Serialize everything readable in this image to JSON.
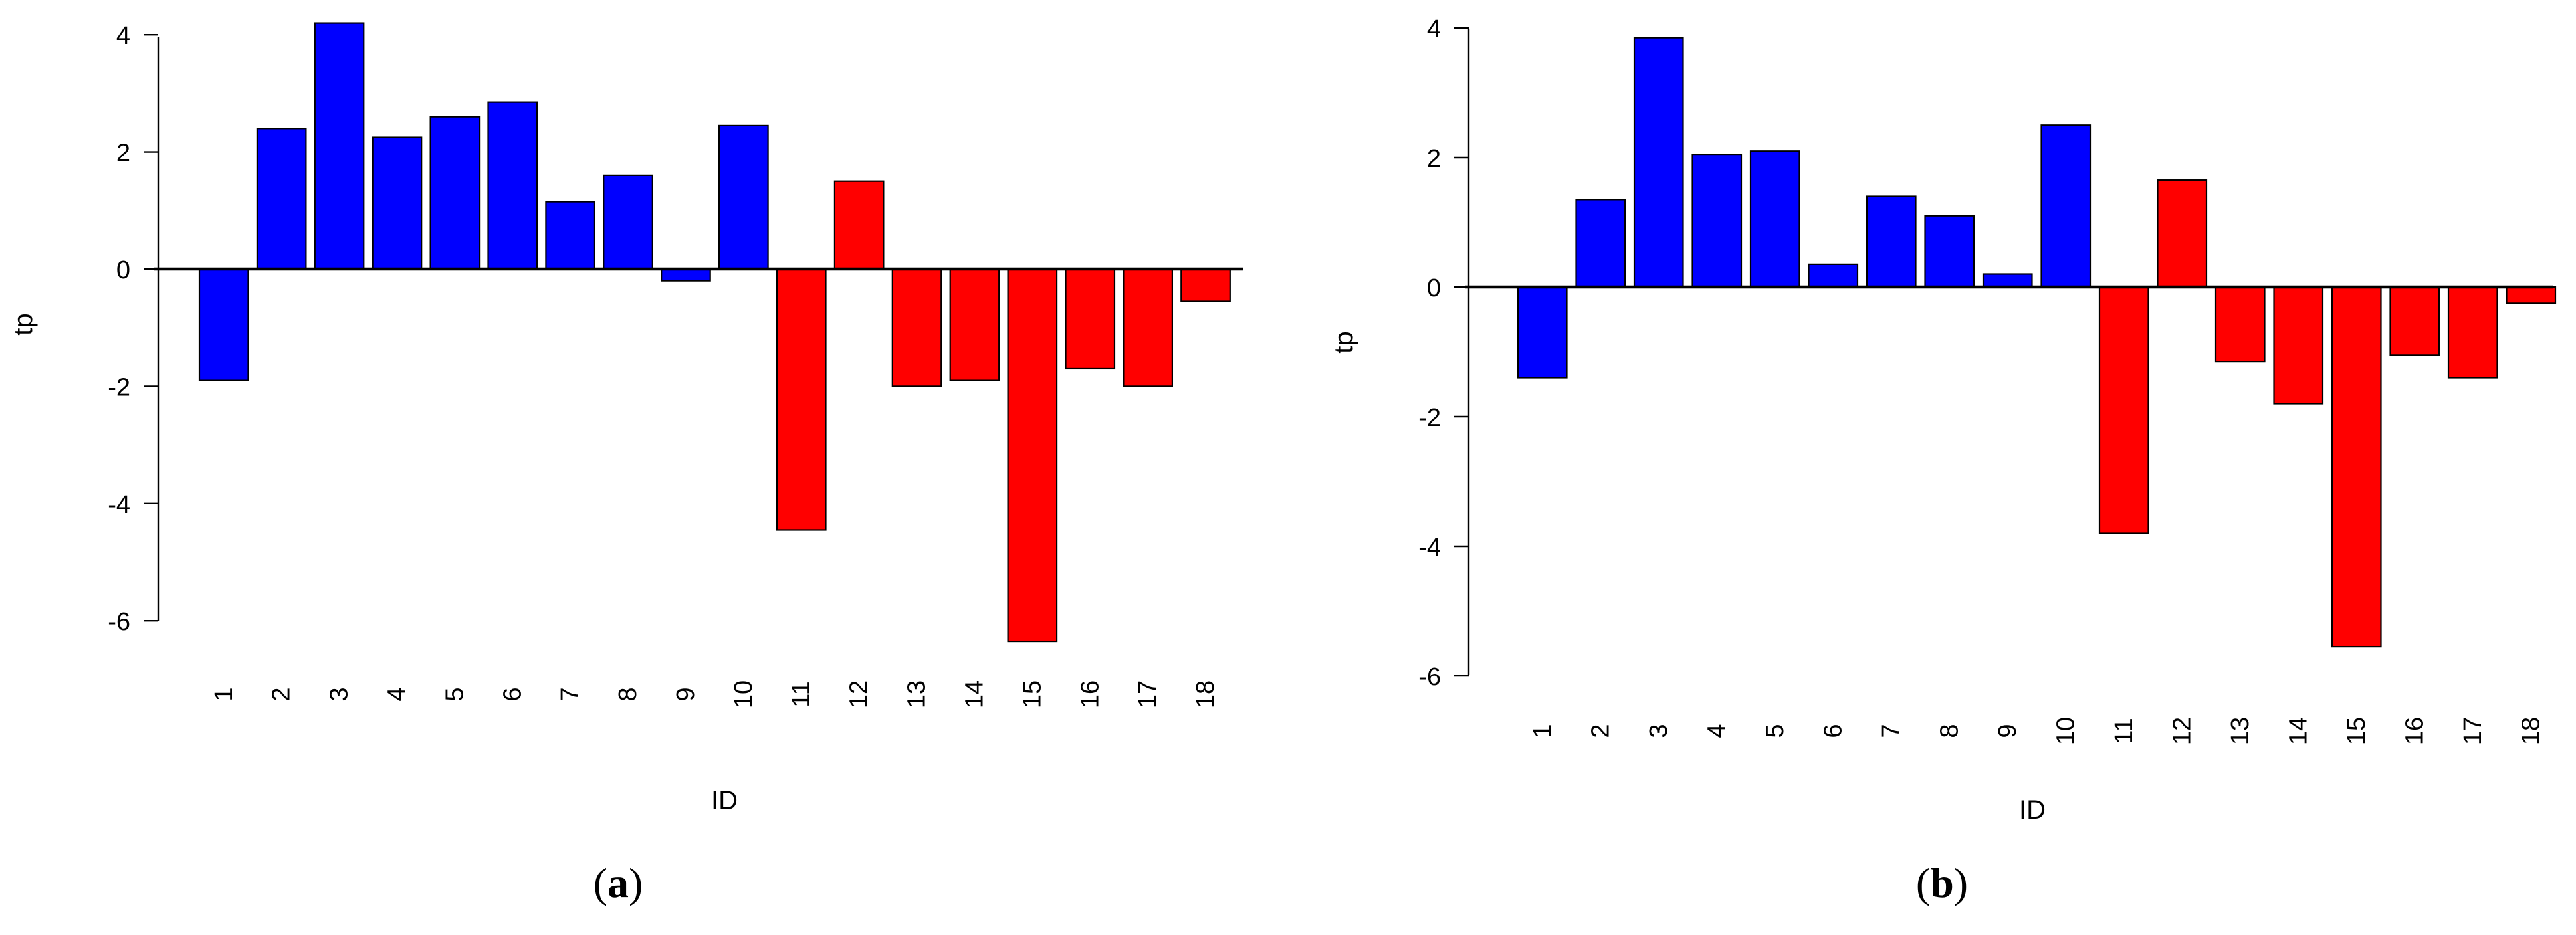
{
  "colors": {
    "positive": "#0000ff",
    "negative": "#ff0000",
    "stroke": "#000000"
  },
  "chart_data": [
    {
      "type": "bar",
      "caption": "a",
      "xlabel": "ID",
      "ylabel": "tp",
      "ylim": [
        -6.35,
        4.2
      ],
      "yticks": [
        4,
        2,
        0,
        -2,
        -4,
        -6
      ],
      "categories": [
        "1",
        "2",
        "3",
        "4",
        "5",
        "6",
        "7",
        "8",
        "9",
        "10",
        "11",
        "12",
        "13",
        "14",
        "15",
        "16",
        "17",
        "18"
      ],
      "values": [
        -1.9,
        2.4,
        4.2,
        2.25,
        2.6,
        2.85,
        1.15,
        1.6,
        -0.2,
        2.45,
        -4.45,
        1.5,
        -2.0,
        -1.9,
        -6.35,
        -1.7,
        -2.0,
        -0.55
      ],
      "bar_colors": [
        "blue",
        "blue",
        "blue",
        "blue",
        "blue",
        "blue",
        "blue",
        "blue",
        "blue",
        "blue",
        "red",
        "red",
        "red",
        "red",
        "red",
        "red",
        "red",
        "red"
      ],
      "grid": false,
      "legend": "none"
    },
    {
      "type": "bar",
      "caption": "b",
      "xlabel": "ID",
      "ylabel": "tp",
      "ylim": [
        -5.55,
        4.0
      ],
      "yticks": [
        4,
        2,
        0,
        -2,
        -4,
        -6
      ],
      "categories": [
        "1",
        "2",
        "3",
        "4",
        "5",
        "6",
        "7",
        "8",
        "9",
        "10",
        "11",
        "12",
        "13",
        "14",
        "15",
        "16",
        "17",
        "18"
      ],
      "values": [
        -1.4,
        1.35,
        3.85,
        2.05,
        2.1,
        0.35,
        1.4,
        1.1,
        0.2,
        2.5,
        -3.8,
        1.65,
        -1.15,
        -1.8,
        -5.55,
        -1.05,
        -1.4,
        -0.25
      ],
      "bar_colors": [
        "blue",
        "blue",
        "blue",
        "blue",
        "blue",
        "blue",
        "blue",
        "blue",
        "blue",
        "blue",
        "red",
        "red",
        "red",
        "red",
        "red",
        "red",
        "red",
        "red"
      ],
      "grid": false,
      "legend": "none"
    }
  ]
}
